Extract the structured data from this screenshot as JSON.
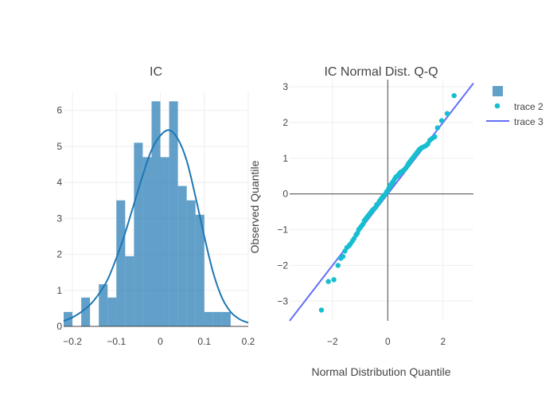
{
  "colors": {
    "hist_bar": "#1f77b4",
    "kde_line": "#1f77b4",
    "qq_points": "#17becf",
    "qq_line": "#636efa",
    "grid": "#eeeeee",
    "axis_line": "#444444",
    "text": "#444444"
  },
  "chart_data": [
    {
      "type": "bar",
      "title": "IC",
      "xlabel": "",
      "ylabel": "",
      "bin_edges": [
        -0.22,
        -0.2,
        -0.18,
        -0.16,
        -0.14,
        -0.12,
        -0.1,
        -0.08,
        -0.06,
        -0.04,
        -0.02,
        0.0,
        0.02,
        0.04,
        0.06,
        0.08,
        0.1,
        0.12,
        0.14,
        0.16,
        0.18
      ],
      "values": [
        0.4,
        0,
        0.8,
        0,
        1.17,
        0.8,
        3.5,
        1.95,
        5.1,
        4.7,
        6.25,
        4.7,
        6.25,
        3.9,
        3.5,
        3.1,
        0.4,
        0.4,
        0.4,
        0
      ],
      "kde": {
        "x": [
          -0.22,
          -0.2,
          -0.18,
          -0.16,
          -0.14,
          -0.12,
          -0.1,
          -0.08,
          -0.06,
          -0.04,
          -0.02,
          0.0,
          0.02,
          0.04,
          0.06,
          0.08,
          0.1,
          0.12,
          0.14,
          0.16,
          0.18,
          0.2
        ],
        "y": [
          0.15,
          0.25,
          0.4,
          0.6,
          0.9,
          1.3,
          1.9,
          2.6,
          3.4,
          4.2,
          4.9,
          5.3,
          5.45,
          5.2,
          4.6,
          3.6,
          2.5,
          1.5,
          0.8,
          0.4,
          0.2,
          0.1
        ]
      },
      "xlim": [
        -0.22,
        0.2
      ],
      "ylim": [
        0,
        6.5
      ],
      "xticks": [
        -0.2,
        -0.1,
        0,
        0.1,
        0.2
      ],
      "xtick_labels": [
        "−0.2",
        "−0.1",
        "0",
        "0.1",
        "0.2"
      ],
      "yticks": [
        0,
        1,
        2,
        3,
        4,
        5,
        6
      ],
      "ytick_labels": [
        "0",
        "1",
        "2",
        "3",
        "4",
        "5",
        "6"
      ],
      "grid": true
    },
    {
      "type": "scatter",
      "title": "IC Normal Dist. Q-Q",
      "xlabel": "Normal Distribution Quantile",
      "ylabel": "Observed Quantile",
      "xlim": [
        -3.55,
        3.1
      ],
      "ylim": [
        -3.55,
        3.2
      ],
      "xticks": [
        -2,
        0,
        2
      ],
      "xtick_labels": [
        "−2",
        "0",
        "2"
      ],
      "yticks": [
        -3,
        -2,
        -1,
        0,
        1,
        2,
        3
      ],
      "ytick_labels": [
        "−3",
        "−2",
        "−1",
        "0",
        "1",
        "2",
        "3"
      ],
      "grid": true,
      "zero_lines": true,
      "points": {
        "x": [
          -2.4,
          -2.15,
          -1.95,
          -1.8,
          -1.7,
          -1.62,
          -1.55,
          -1.48,
          -1.4,
          -1.35,
          -1.28,
          -1.22,
          -1.15,
          -1.1,
          -1.05,
          -1.0,
          -0.95,
          -0.9,
          -0.85,
          -0.8,
          -0.75,
          -0.7,
          -0.65,
          -0.6,
          -0.55,
          -0.5,
          -0.45,
          -0.4,
          -0.35,
          -0.3,
          -0.25,
          -0.2,
          -0.15,
          -0.1,
          -0.05,
          0.0,
          0.05,
          0.1,
          0.15,
          0.2,
          0.25,
          0.3,
          0.35,
          0.4,
          0.45,
          0.5,
          0.55,
          0.6,
          0.65,
          0.7,
          0.75,
          0.8,
          0.85,
          0.9,
          0.95,
          1.0,
          1.05,
          1.1,
          1.15,
          1.2,
          1.25,
          1.3,
          1.38,
          1.45,
          1.52,
          1.6,
          1.7,
          1.8,
          1.95,
          2.15,
          2.4
        ],
        "y": [
          -3.25,
          -2.45,
          -2.4,
          -2.0,
          -1.8,
          -1.75,
          -1.6,
          -1.5,
          -1.45,
          -1.4,
          -1.32,
          -1.25,
          -1.15,
          -1.1,
          -1.0,
          -0.95,
          -0.9,
          -0.85,
          -0.75,
          -0.7,
          -0.65,
          -0.6,
          -0.55,
          -0.5,
          -0.45,
          -0.42,
          -0.38,
          -0.3,
          -0.27,
          -0.2,
          -0.15,
          -0.1,
          -0.05,
          -0.02,
          0.05,
          0.1,
          0.18,
          0.25,
          0.3,
          0.35,
          0.42,
          0.48,
          0.5,
          0.55,
          0.6,
          0.62,
          0.65,
          0.68,
          0.72,
          0.78,
          0.85,
          0.9,
          0.95,
          1.0,
          1.05,
          1.1,
          1.15,
          1.2,
          1.25,
          1.28,
          1.3,
          1.32,
          1.35,
          1.4,
          1.5,
          1.55,
          1.6,
          1.85,
          2.05,
          2.25,
          2.75
        ]
      },
      "reference_line": {
        "x": [
          -3.55,
          3.1
        ],
        "y": [
          -3.55,
          3.1
        ]
      }
    }
  ],
  "legend": {
    "placement": "top-right",
    "items": [
      {
        "label": "",
        "marker": "square"
      },
      {
        "label": "trace 2",
        "marker": "dot"
      },
      {
        "label": "trace 3",
        "marker": "line"
      }
    ]
  }
}
